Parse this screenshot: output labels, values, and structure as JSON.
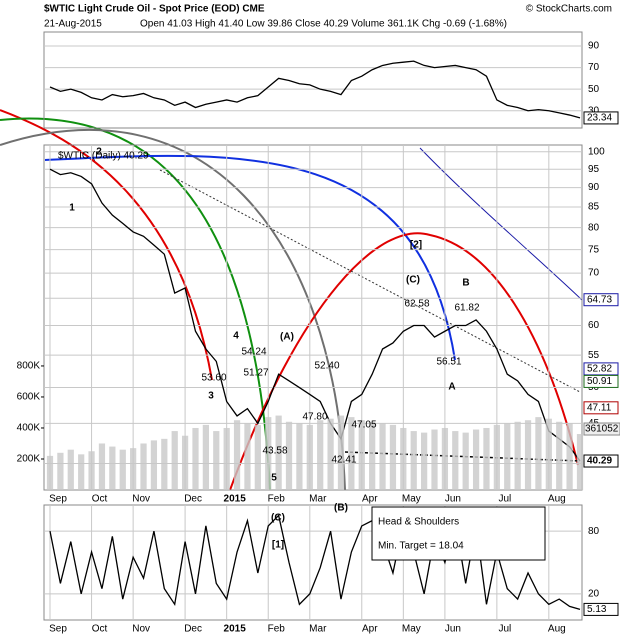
{
  "chart_data": [
    {
      "type": "line",
      "name": "RSI",
      "series": [
        {
          "name": "RSI",
          "color": "#000000",
          "values": [
            52,
            48,
            50,
            47,
            42,
            40,
            45,
            43,
            44,
            46,
            42,
            40,
            35,
            38,
            33,
            36,
            38,
            40,
            38,
            42,
            44,
            52,
            60,
            58,
            55,
            54,
            50,
            48,
            45,
            58,
            62,
            68,
            72,
            74,
            75,
            76,
            72,
            70,
            71,
            72,
            70,
            68,
            62,
            40,
            35,
            33,
            30,
            31,
            30,
            28,
            26,
            23.34
          ]
        }
      ],
      "ylim": [
        14,
        103
      ],
      "yticks": [
        30,
        50,
        70,
        90
      ],
      "last_label": 23.34,
      "grid": true
    },
    {
      "type": "line",
      "title": "$WTIC Light Crude Oil - Spot Price (EOD) CME",
      "subtitle": "21-Aug-2015",
      "stats": "Open 41.03 High 41.40 Low 39.86 Close 40.29 Volume 361.1K Chg -0.69 (-1.68%)",
      "source": "© StockCharts.com",
      "categories": [
        "Sep",
        null,
        null,
        null,
        "Oct",
        null,
        null,
        null,
        "Nov",
        null,
        null,
        null,
        null,
        "Dec",
        null,
        null,
        null,
        "2015",
        null,
        null,
        null,
        "Feb",
        null,
        null,
        null,
        "Mar",
        null,
        null,
        null,
        null,
        "Apr",
        null,
        null,
        null,
        "May",
        null,
        null,
        null,
        "Jun",
        null,
        null,
        null,
        null,
        "Jul",
        null,
        null,
        null,
        null,
        "Aug",
        null,
        null,
        null
      ],
      "series": [
        {
          "name": "$WTIC (Daily) 40.29",
          "color": "#000000",
          "values": [
            95,
            93.5,
            94,
            93,
            91,
            86,
            83,
            81,
            79,
            78,
            76,
            74,
            66,
            67,
            59,
            56,
            54,
            48,
            46,
            47,
            45,
            48,
            52,
            51,
            50,
            49,
            48,
            45,
            43,
            48,
            49,
            52,
            56,
            57,
            59,
            60,
            60,
            58,
            59,
            60,
            60,
            61,
            59,
            56,
            52,
            51,
            49,
            48,
            44,
            43,
            42,
            40.29
          ]
        },
        {
          "name": "Volume",
          "color": "#c8c8c8",
          "axis": "y2",
          "values": [
            220000,
            240000,
            260000,
            230000,
            250000,
            300000,
            280000,
            260000,
            270000,
            300000,
            320000,
            330000,
            380000,
            350000,
            400000,
            420000,
            380000,
            400000,
            450000,
            430000,
            420000,
            470000,
            480000,
            440000,
            430000,
            420000,
            450000,
            460000,
            480000,
            470000,
            450000,
            440000,
            430000,
            420000,
            400000,
            380000,
            370000,
            390000,
            400000,
            380000,
            370000,
            390000,
            400000,
            420000,
            430000,
            440000,
            450000,
            470000,
            460000,
            440000,
            430000,
            361052
          ]
        }
      ],
      "ylim": [
        37,
        102
      ],
      "yticks": [
        40,
        45,
        50,
        55,
        60,
        65,
        70,
        75,
        80,
        85,
        90,
        95,
        100
      ],
      "log_scale": true,
      "y2lim": [
        0,
        2225000
      ],
      "y2ticks": [
        {
          "value": 200000,
          "label": "200K"
        },
        {
          "value": 400000,
          "label": "400K"
        },
        {
          "value": 600000,
          "label": "600K"
        },
        {
          "value": 800000,
          "label": "800K"
        }
      ],
      "price_tags": [
        {
          "value": 64.73,
          "color": "#1a1aa6"
        },
        {
          "value": 52.82,
          "color": "#1a1aa6"
        },
        {
          "value": 50.91,
          "color": "#1a6a1a"
        },
        {
          "value": 47.11,
          "color": "#b00000"
        },
        {
          "value": 40.29,
          "color": "#000000"
        }
      ],
      "volume_tag": 361052,
      "annotations": [
        "1",
        "2",
        "3",
        "4",
        "5",
        "(A)",
        "(B)",
        "(C)",
        "[2]",
        "B",
        "A",
        "(C)",
        "[1]",
        "53.60",
        "54.24",
        "51.27",
        "43.58",
        "47.80",
        "52.40",
        "42.41",
        "47.05",
        "62.58",
        "56.51",
        "61.82"
      ],
      "grid": true
    },
    {
      "type": "line",
      "name": "Oscillator",
      "series": [
        {
          "name": "Oscillator",
          "color": "#000000",
          "values": [
            80,
            30,
            70,
            20,
            60,
            25,
            75,
            15,
            55,
            35,
            80,
            25,
            10,
            70,
            20,
            85,
            30,
            15,
            60,
            90,
            40,
            85,
            95,
            50,
            10,
            20,
            45,
            80,
            15,
            60,
            85,
            90,
            70,
            40,
            88,
            60,
            20,
            75,
            50,
            90,
            30,
            85,
            10,
            60,
            25,
            15,
            40,
            20,
            10,
            15,
            8,
            5.13
          ]
        }
      ],
      "categories": [
        "Sep",
        null,
        null,
        null,
        "Oct",
        null,
        null,
        null,
        "Nov",
        null,
        null,
        null,
        null,
        "Dec",
        null,
        null,
        null,
        "2015",
        null,
        null,
        null,
        "Feb",
        null,
        null,
        null,
        "Mar",
        null,
        null,
        null,
        null,
        "Apr",
        null,
        null,
        null,
        "May",
        null,
        null,
        null,
        "Jun",
        null,
        null,
        null,
        null,
        "Jul",
        null,
        null,
        null,
        null,
        "Aug",
        null,
        null,
        null
      ],
      "ylim": [
        -5,
        105
      ],
      "yticks": [
        20,
        80
      ],
      "last_label": 5.13,
      "grid": true,
      "textbox": [
        "Head & Shoulders",
        "Min. Target = 18.04"
      ]
    }
  ]
}
